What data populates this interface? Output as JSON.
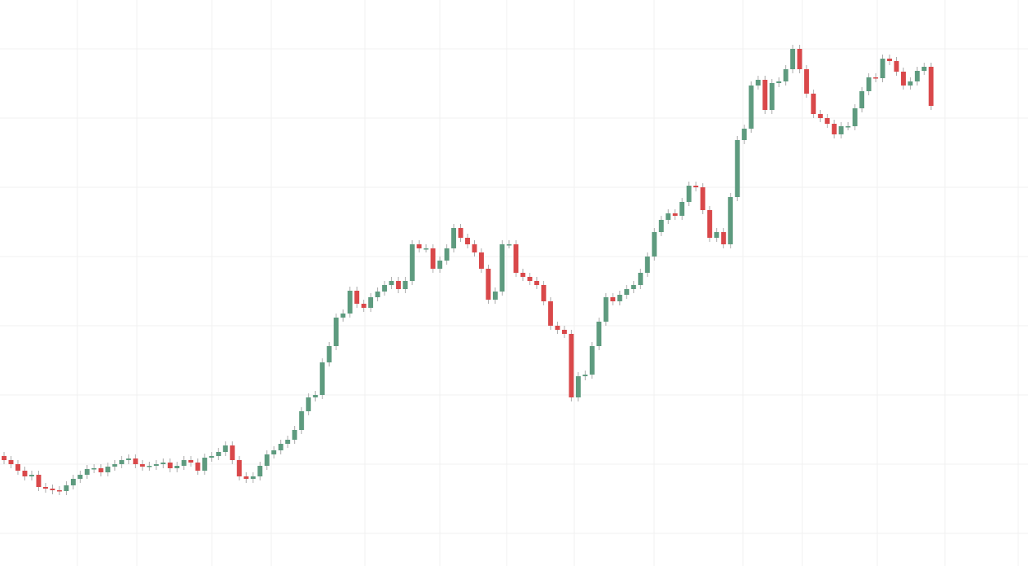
{
  "chart_data": {
    "type": "candlestick",
    "up_color": "#5e9b7f",
    "down_color": "#d9484a",
    "ylim": [
      0,
      700
    ],
    "open": [
      140,
      135,
      130,
      122,
      115,
      117,
      102,
      100,
      98,
      97,
      104,
      112,
      117,
      124,
      125,
      120,
      127,
      130,
      135,
      137,
      130,
      127,
      128,
      130,
      132,
      125,
      128,
      135,
      132,
      122,
      138,
      140,
      145,
      153,
      135,
      115,
      112,
      115,
      128,
      142,
      147,
      155,
      160,
      172,
      195,
      212,
      215,
      255,
      275,
      310,
      315,
      343,
      327,
      322,
      335,
      342,
      350,
      355,
      345,
      355,
      400,
      395,
      395,
      370,
      380,
      395,
      420,
      408,
      400,
      390,
      370,
      332,
      342,
      400,
      400,
      365,
      360,
      355,
      350,
      330,
      300,
      295,
      290,
      212,
      238,
      240,
      275,
      305,
      335,
      330,
      338,
      345,
      350,
      365,
      385,
      415,
      430,
      438,
      435,
      452,
      472,
      470,
      442,
      408,
      415,
      400,
      458,
      528,
      542,
      595,
      602,
      565,
      598,
      600,
      615,
      640,
      615,
      585,
      560,
      555,
      548,
      535,
      545,
      545,
      567,
      588,
      605,
      604,
      628,
      625,
      612,
      595,
      600,
      613,
      618
    ],
    "high": [
      145,
      140,
      135,
      127,
      122,
      122,
      107,
      105,
      103,
      109,
      117,
      122,
      129,
      130,
      130,
      132,
      135,
      140,
      142,
      142,
      135,
      133,
      135,
      137,
      137,
      133,
      140,
      140,
      137,
      143,
      145,
      150,
      158,
      158,
      140,
      120,
      120,
      133,
      147,
      152,
      160,
      165,
      177,
      200,
      217,
      220,
      260,
      280,
      315,
      320,
      348,
      348,
      332,
      340,
      347,
      355,
      360,
      360,
      360,
      405,
      405,
      400,
      400,
      385,
      400,
      425,
      425,
      413,
      405,
      395,
      375,
      347,
      405,
      405,
      405,
      370,
      365,
      360,
      355,
      335,
      305,
      300,
      295,
      243,
      245,
      280,
      310,
      340,
      340,
      343,
      350,
      355,
      370,
      390,
      420,
      435,
      443,
      443,
      457,
      477,
      477,
      475,
      447,
      420,
      420,
      463,
      533,
      547,
      600,
      607,
      607,
      603,
      605,
      620,
      645,
      645,
      620,
      590,
      565,
      560,
      553,
      550,
      550,
      572,
      593,
      610,
      610,
      633,
      633,
      630,
      617,
      605,
      618,
      623,
      623
    ],
    "low": [
      130,
      125,
      117,
      110,
      110,
      97,
      95,
      93,
      92,
      92,
      99,
      107,
      112,
      119,
      115,
      115,
      122,
      125,
      130,
      125,
      122,
      122,
      123,
      125,
      120,
      120,
      123,
      127,
      117,
      117,
      133,
      135,
      140,
      130,
      110,
      107,
      107,
      110,
      123,
      137,
      142,
      150,
      155,
      167,
      190,
      207,
      210,
      250,
      270,
      305,
      310,
      322,
      317,
      317,
      330,
      337,
      345,
      340,
      340,
      350,
      390,
      390,
      365,
      365,
      375,
      390,
      403,
      395,
      385,
      365,
      327,
      327,
      337,
      395,
      360,
      355,
      350,
      345,
      325,
      295,
      290,
      285,
      207,
      207,
      233,
      235,
      270,
      300,
      325,
      325,
      333,
      340,
      345,
      360,
      380,
      410,
      425,
      430,
      430,
      447,
      465,
      437,
      403,
      403,
      395,
      395,
      453,
      523,
      537,
      590,
      560,
      560,
      593,
      595,
      610,
      610,
      580,
      555,
      550,
      543,
      530,
      530,
      540,
      540,
      562,
      583,
      599,
      599,
      620,
      607,
      590,
      590,
      595,
      608,
      565
    ],
    "close": [
      135,
      130,
      122,
      115,
      117,
      102,
      100,
      98,
      97,
      104,
      112,
      117,
      124,
      125,
      120,
      127,
      130,
      135,
      137,
      130,
      127,
      128,
      130,
      132,
      125,
      128,
      135,
      132,
      122,
      138,
      140,
      145,
      153,
      135,
      115,
      112,
      115,
      128,
      142,
      147,
      155,
      160,
      172,
      195,
      212,
      215,
      255,
      275,
      310,
      315,
      343,
      327,
      322,
      335,
      342,
      350,
      355,
      345,
      355,
      400,
      395,
      395,
      370,
      380,
      395,
      420,
      408,
      400,
      390,
      370,
      332,
      342,
      400,
      400,
      365,
      360,
      355,
      350,
      330,
      300,
      295,
      290,
      212,
      238,
      240,
      275,
      305,
      335,
      330,
      338,
      345,
      350,
      365,
      385,
      415,
      430,
      438,
      435,
      452,
      472,
      470,
      442,
      408,
      415,
      400,
      458,
      528,
      542,
      595,
      602,
      565,
      598,
      600,
      615,
      640,
      615,
      585,
      560,
      555,
      548,
      535,
      545,
      545,
      567,
      588,
      605,
      604,
      628,
      625,
      612,
      595,
      600,
      613,
      618,
      570
    ]
  }
}
